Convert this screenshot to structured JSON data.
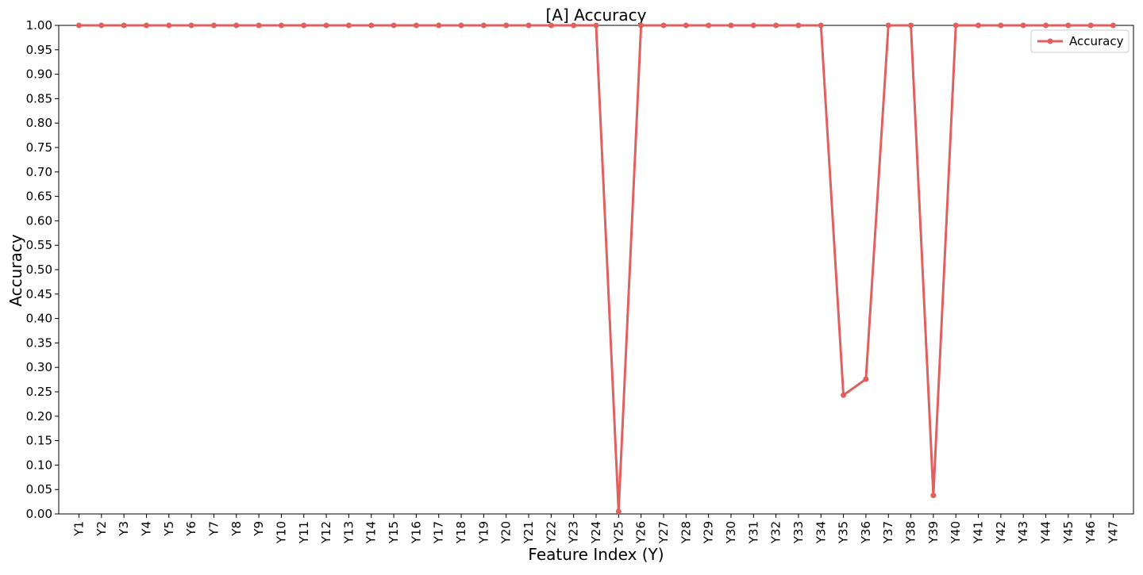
{
  "chart_data": {
    "type": "line",
    "title": "[A] Accuracy",
    "xlabel": "Feature Index (Y)",
    "ylabel": "Accuracy",
    "ylim": [
      0,
      1
    ],
    "yticks": [
      "0.00",
      "0.05",
      "0.10",
      "0.15",
      "0.20",
      "0.25",
      "0.30",
      "0.35",
      "0.40",
      "0.45",
      "0.50",
      "0.55",
      "0.60",
      "0.65",
      "0.70",
      "0.75",
      "0.80",
      "0.85",
      "0.90",
      "0.95",
      "1.00"
    ],
    "categories": [
      "Y1",
      "Y2",
      "Y3",
      "Y4",
      "Y5",
      "Y6",
      "Y7",
      "Y8",
      "Y9",
      "Y10",
      "Y11",
      "Y12",
      "Y13",
      "Y14",
      "Y15",
      "Y16",
      "Y17",
      "Y18",
      "Y19",
      "Y20",
      "Y21",
      "Y22",
      "Y23",
      "Y24",
      "Y25",
      "Y26",
      "Y27",
      "Y28",
      "Y29",
      "Y30",
      "Y31",
      "Y32",
      "Y33",
      "Y34",
      "Y35",
      "Y36",
      "Y37",
      "Y38",
      "Y39",
      "Y40",
      "Y41",
      "Y42",
      "Y43",
      "Y44",
      "Y45",
      "Y46",
      "Y47"
    ],
    "series": [
      {
        "name": "Accuracy",
        "color": "#e06060",
        "values": [
          1,
          1,
          1,
          1,
          1,
          1,
          1,
          1,
          1,
          1,
          1,
          1,
          1,
          1,
          1,
          1,
          1,
          1,
          1,
          1,
          1,
          1,
          1,
          1,
          0.005,
          1,
          1,
          1,
          1,
          1,
          1,
          1,
          1,
          1,
          0.243,
          0.276,
          1,
          1,
          0.038,
          1,
          1,
          1,
          1,
          1,
          1,
          1,
          1
        ]
      }
    ],
    "grid": false,
    "legend_position": "top-right"
  }
}
